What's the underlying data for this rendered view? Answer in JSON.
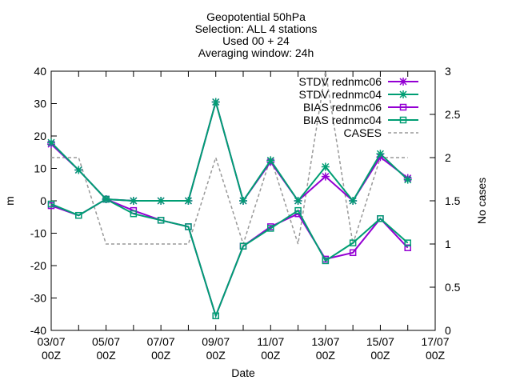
{
  "chart_data": {
    "type": "line",
    "title_lines": [
      "Geopotential 50hPa",
      "Selection: ALL      4 stations",
      "Used 00 + 24",
      "Averaging window: 24h"
    ],
    "xlabel": "Date",
    "ylabel": "m",
    "y2label": "No cases",
    "x": [
      "03/07 00Z",
      "04/07 00Z",
      "05/07 00Z",
      "06/07 00Z",
      "07/07 00Z",
      "08/07 00Z",
      "09/07 00Z",
      "10/07 00Z",
      "11/07 00Z",
      "12/07 00Z",
      "13/07 00Z",
      "14/07 00Z",
      "15/07 00Z",
      "16/07 00Z"
    ],
    "xticks": [
      {
        "day": 0,
        "line1": "03/07",
        "line2": "00Z"
      },
      {
        "day": 2,
        "line1": "05/07",
        "line2": "00Z"
      },
      {
        "day": 4,
        "line1": "07/07",
        "line2": "00Z"
      },
      {
        "day": 6,
        "line1": "09/07",
        "line2": "00Z"
      },
      {
        "day": 8,
        "line1": "11/07",
        "line2": "00Z"
      },
      {
        "day": 10,
        "line1": "13/07",
        "line2": "00Z"
      },
      {
        "day": 12,
        "line1": "15/07",
        "line2": "00Z"
      },
      {
        "day": 14,
        "line1": "17/07",
        "line2": "00Z"
      }
    ],
    "xlim_days": [
      0,
      14
    ],
    "ylim": [
      -40,
      40
    ],
    "yticks": [
      -40,
      -30,
      -20,
      -10,
      0,
      10,
      20,
      30,
      40
    ],
    "y2lim": [
      0,
      3
    ],
    "y2ticks": [
      "0",
      "0.5",
      "1",
      "1.5",
      "2",
      "2.5",
      "3"
    ],
    "legend_position": "top-right",
    "grid": false,
    "series": [
      {
        "name": "STDV rednmc06",
        "axis": "y1",
        "color": "#9400d3",
        "marker": "star",
        "dash": false,
        "values": [
          17.5,
          9.5,
          0.5,
          0,
          0,
          0,
          30.5,
          0,
          12,
          0,
          7.5,
          0,
          13.5,
          7
        ]
      },
      {
        "name": "STDV rednmc04",
        "axis": "y1",
        "color": "#009e73",
        "marker": "star",
        "dash": false,
        "values": [
          18,
          9.5,
          0.5,
          0,
          0,
          0,
          30.5,
          0,
          12.5,
          0,
          10.5,
          0,
          14.5,
          6.5
        ]
      },
      {
        "name": "BIAS rednmc06",
        "axis": "y1",
        "color": "#9400d3",
        "marker": "square",
        "dash": false,
        "values": [
          -1.5,
          -4.5,
          0.5,
          -3,
          -6,
          -8,
          -35.5,
          -14,
          -8,
          -4,
          -18,
          -16,
          -5.5,
          -14.5
        ]
      },
      {
        "name": "BIAS rednmc04",
        "axis": "y1",
        "color": "#009e73",
        "marker": "square",
        "dash": false,
        "values": [
          -1,
          -4.5,
          0.5,
          -4,
          -6,
          -8,
          -35.5,
          -14,
          -8.5,
          -3,
          -18.5,
          -13,
          -5.5,
          -13
        ]
      },
      {
        "name": "CASES",
        "axis": "y2",
        "color": "#999999",
        "marker": "none",
        "dash": true,
        "values": [
          2,
          2,
          1,
          1,
          1,
          1,
          2,
          1,
          2,
          1,
          3,
          1,
          2,
          2
        ]
      }
    ]
  }
}
